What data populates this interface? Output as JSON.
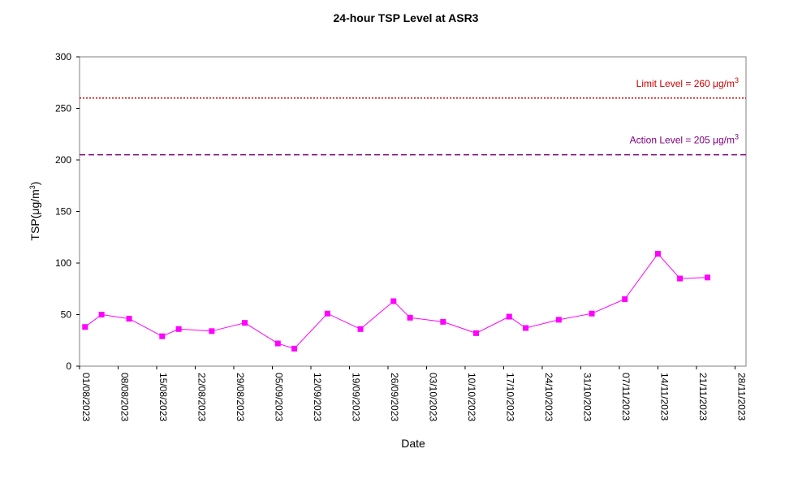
{
  "chart_data": {
    "type": "line",
    "title": "24-hour TSP Level at ASR3",
    "xlabel": "Date",
    "ylabel_main": "TSP(",
    "ylabel_unit": "μg/m",
    "ylabel_sup": "3",
    "ylabel_close": ")",
    "ylim": [
      0,
      300
    ],
    "yticks": [
      0,
      50,
      100,
      150,
      200,
      250,
      300
    ],
    "xlim": [
      "2023-08-01",
      "2023-11-30"
    ],
    "xticks": [
      "01/08/2023",
      "08/08/2023",
      "15/08/2023",
      "22/08/2023",
      "29/08/2023",
      "05/09/2023",
      "12/09/2023",
      "19/09/2023",
      "26/09/2023",
      "03/10/2023",
      "10/10/2023",
      "17/10/2023",
      "24/10/2023",
      "31/10/2023",
      "07/11/2023",
      "14/11/2023",
      "21/11/2023",
      "28/11/2023"
    ],
    "grid": false,
    "series": [
      {
        "color": "#ff00ff",
        "marker": "square",
        "points": [
          {
            "x": "2023-08-02",
            "y": 38
          },
          {
            "x": "2023-08-05",
            "y": 50
          },
          {
            "x": "2023-08-10",
            "y": 46
          },
          {
            "x": "2023-08-16",
            "y": 29
          },
          {
            "x": "2023-08-19",
            "y": 36
          },
          {
            "x": "2023-08-25",
            "y": 34
          },
          {
            "x": "2023-08-31",
            "y": 42
          },
          {
            "x": "2023-09-06",
            "y": 22
          },
          {
            "x": "2023-09-09",
            "y": 17
          },
          {
            "x": "2023-09-15",
            "y": 51
          },
          {
            "x": "2023-09-21",
            "y": 36
          },
          {
            "x": "2023-09-27",
            "y": 63
          },
          {
            "x": "2023-09-30",
            "y": 47
          },
          {
            "x": "2023-10-06",
            "y": 43
          },
          {
            "x": "2023-10-12",
            "y": 32
          },
          {
            "x": "2023-10-18",
            "y": 48
          },
          {
            "x": "2023-10-21",
            "y": 37
          },
          {
            "x": "2023-10-27",
            "y": 45
          },
          {
            "x": "2023-11-02",
            "y": 51
          },
          {
            "x": "2023-11-08",
            "y": 65
          },
          {
            "x": "2023-11-14",
            "y": 109
          },
          {
            "x": "2023-11-18",
            "y": 85
          },
          {
            "x": "2023-11-23",
            "y": 86
          }
        ]
      }
    ],
    "reference_lines": [
      {
        "label": "Limit Level  = 260 μg/m",
        "label_sup": "3",
        "value": 260,
        "color": "#cc0000",
        "style": "dotted"
      },
      {
        "label": "Action Level  = 205 μg/m",
        "label_sup": "3",
        "value": 205,
        "color": "#800080",
        "style": "dashed"
      }
    ]
  }
}
